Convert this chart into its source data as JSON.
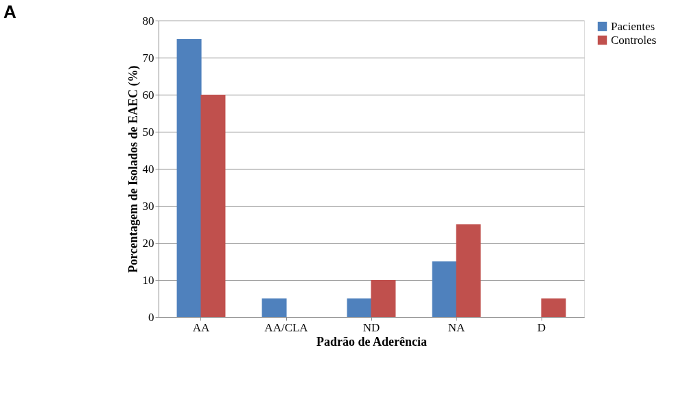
{
  "chart_data": {
    "type": "bar",
    "title": "A",
    "xlabel": "Padrão de Aderência",
    "ylabel": "Porcentagem de Isolados de EAEC (%)",
    "categories": [
      "AA",
      "AA/CLA",
      "ND",
      "NA",
      "D"
    ],
    "series": [
      {
        "name": "Pacientes",
        "color": "#4f81bd",
        "values": [
          75,
          5,
          5,
          15,
          0
        ]
      },
      {
        "name": "Controles",
        "color": "#c0504d",
        "values": [
          60,
          0,
          10,
          25,
          5
        ]
      }
    ],
    "ylim": [
      0,
      80
    ],
    "yticks": [
      0,
      10,
      20,
      30,
      40,
      50,
      60,
      70,
      80
    ],
    "grid": "y",
    "legend": "right"
  }
}
